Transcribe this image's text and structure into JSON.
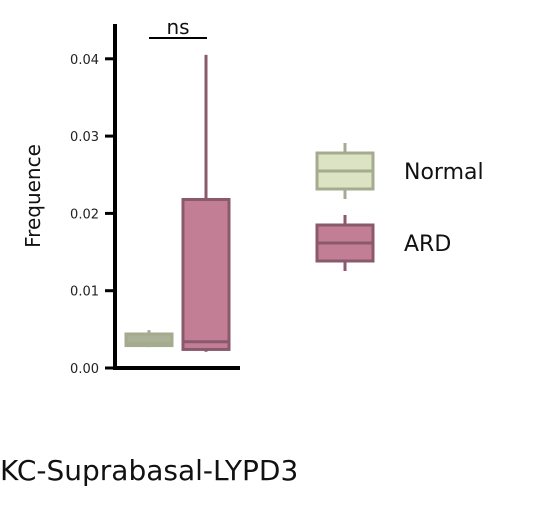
{
  "chart_data": {
    "type": "box",
    "ylabel": "Frequence",
    "xlabel": "",
    "ylim": [
      0,
      0.0445
    ],
    "yticks": [
      "0.00",
      "0.01",
      "0.02",
      "0.03",
      "0.04"
    ],
    "ytick_values": [
      0,
      0.01,
      0.02,
      0.03,
      0.04
    ],
    "caption": "KC-Suprabasal-LYPD3",
    "significance": "ns",
    "legend_position": "right",
    "grid": false,
    "series": [
      {
        "name": "Normal",
        "fill": "#abb194",
        "stroke": "#a5ab8f",
        "legend_fill": "#dbe3c2",
        "whisker_low": 0.0027,
        "q1": 0.0029,
        "median": 0.0032,
        "q3": 0.0044,
        "whisker_high": 0.0049
      },
      {
        "name": "ARD",
        "fill": "#c27e94",
        "stroke": "#8a5a6c",
        "legend_fill": "#c27e94",
        "whisker_low": 0.0021,
        "q1": 0.0024,
        "median": 0.0034,
        "q3": 0.0218,
        "whisker_high": 0.0405
      }
    ]
  }
}
